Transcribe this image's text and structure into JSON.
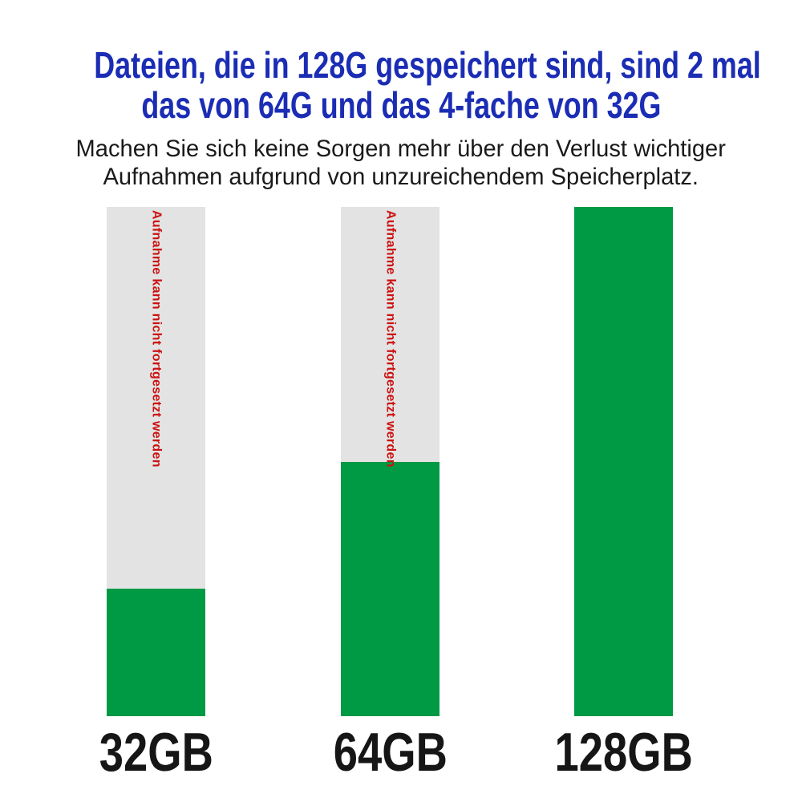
{
  "page": {
    "background": "#ffffff"
  },
  "header": {
    "title": {
      "line1": "Dateien, die in 128G gespeichert sind, sind 2 mal",
      "line2": "das von 64G und das 4-fache von 32G",
      "color": "#1b2db4"
    },
    "subtitle": {
      "line1": "Machen Sie sich keine Sorgen mehr über den Verlust wichtiger",
      "line2": "Aufnahmen aufgrund von unzureichendem Speicherplatz.",
      "color": "#1a1a1a"
    }
  },
  "chart_data": {
    "type": "bar",
    "title": "Dateien, die in 128G gespeichert sind, sind 2 mal das von 64G und das 4-fache von 32G",
    "subtitle": "Machen Sie sich keine Sorgen mehr über den Verlust wichtiger Aufnahmen aufgrund von unzureichendem Speicherplatz.",
    "categories": [
      "32GB",
      "64GB",
      "128GB"
    ],
    "values": [
      32,
      64,
      128
    ],
    "unit": "GB",
    "bars": [
      {
        "label": "32GB",
        "capacity_gb": 32,
        "fill_percent": 25,
        "warning_text": "Aufnahme kann nicht fortgesetzt werden"
      },
      {
        "label": "64GB",
        "capacity_gb": 64,
        "fill_percent": 50,
        "warning_text": "Aufnahme kann nicht fortgesetzt werden"
      },
      {
        "label": "128GB",
        "capacity_gb": 128,
        "fill_percent": 100,
        "warning_text": ""
      }
    ],
    "colors": {
      "bar_filled": "#009944",
      "bar_empty": "#e3e3e3",
      "warning_text": "#cc1111",
      "label_text": "#161616",
      "title_text": "#1b2db4"
    },
    "xlabel": "",
    "ylabel": "",
    "grid": false,
    "legend": "none",
    "axes_visible": false
  }
}
